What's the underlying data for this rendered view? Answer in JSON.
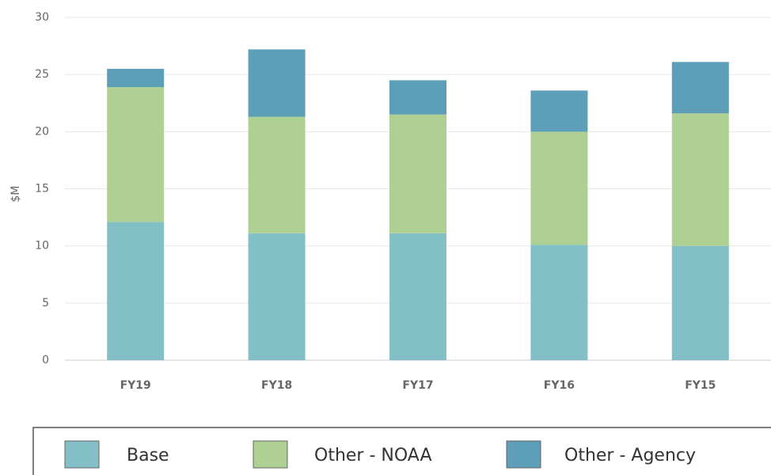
{
  "chart_data": {
    "type": "stacked_bar",
    "y_label": "$M",
    "categories": [
      "FY19",
      "FY18",
      "FY17",
      "FY16",
      "FY15"
    ],
    "series": [
      {
        "name": "Base",
        "color": "#82bfc6",
        "values": [
          12.1,
          11.1,
          11.1,
          10.1,
          10.0
        ]
      },
      {
        "name": "Other - NOAA",
        "color": "#aed092",
        "values": [
          11.8,
          10.2,
          10.4,
          9.9,
          11.6
        ]
      },
      {
        "name": "Other - Agency",
        "color": "#5d9eb8",
        "values": [
          1.6,
          5.9,
          3.0,
          3.6,
          4.5
        ]
      }
    ],
    "ylim": [
      0,
      30
    ],
    "yticks": [
      0,
      5,
      10,
      15,
      20,
      25,
      30
    ],
    "grid": true
  }
}
